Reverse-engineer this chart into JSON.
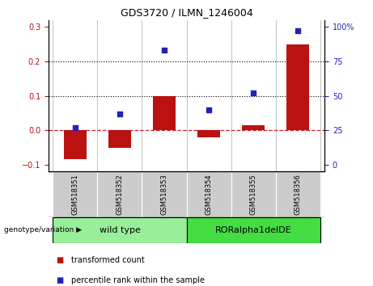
{
  "title": "GDS3720 / ILMN_1246004",
  "categories": [
    "GSM518351",
    "GSM518352",
    "GSM518353",
    "GSM518354",
    "GSM518355",
    "GSM518356"
  ],
  "bar_values": [
    -0.085,
    -0.05,
    0.1,
    -0.02,
    0.015,
    0.25
  ],
  "dot_values": [
    27,
    37,
    83,
    40,
    52,
    97
  ],
  "bar_color": "#bb1111",
  "dot_color": "#2222bb",
  "ylim_left": [
    -0.12,
    0.32
  ],
  "yticks_left": [
    -0.1,
    0.0,
    0.1,
    0.2,
    0.3
  ],
  "yticks_right": [
    0,
    25,
    50,
    75,
    100
  ],
  "ytick_labels_right": [
    "0",
    "25",
    "50",
    "75",
    "100%"
  ],
  "hlines": [
    0.1,
    0.2
  ],
  "zero_line_color": "#cc2222",
  "group1_label": "wild type",
  "group2_label": "RORalpha1delDE",
  "group1_color": "#99ee99",
  "group2_color": "#44dd44",
  "genotype_label": "genotype/variation",
  "legend_bar_label": "transformed count",
  "legend_dot_label": "percentile rank within the sample",
  "bar_width": 0.5,
  "group1_indices": [
    0,
    1,
    2
  ],
  "group2_indices": [
    3,
    4,
    5
  ]
}
